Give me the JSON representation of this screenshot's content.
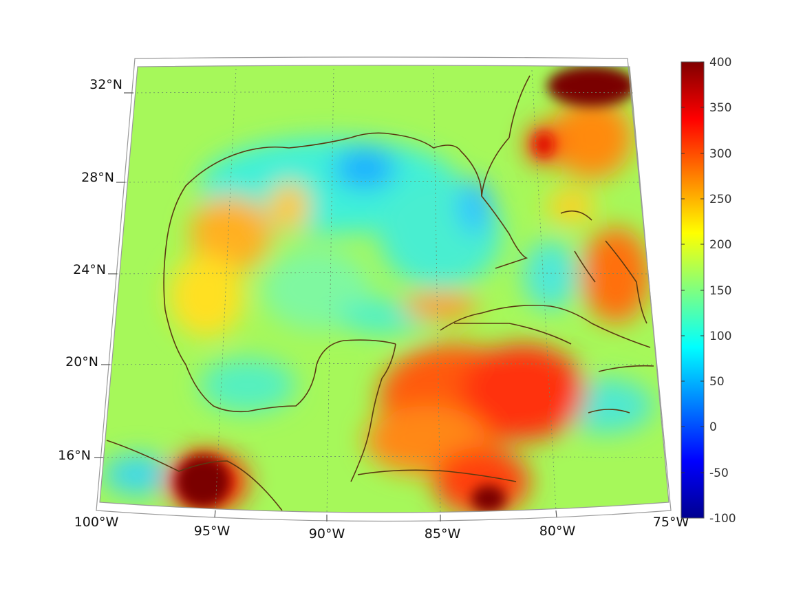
{
  "map": {
    "region": "Gulf of Mexico and Caribbean",
    "lon_labels": [
      "100°W",
      "95°W",
      "90°W",
      "85°W",
      "80°W",
      "75°W"
    ],
    "lat_labels": [
      "32°N",
      "28°N",
      "24°N",
      "20°N",
      "16°N"
    ],
    "coastline_color": "#5a3a12",
    "graticule": true
  },
  "colorbar": {
    "colormap": "jet",
    "min": -100,
    "max": 400,
    "tick_labels": [
      "400",
      "350",
      "300",
      "250",
      "200",
      "150",
      "100",
      "50",
      "0",
      "-50",
      "-100"
    ]
  },
  "field": {
    "background_level": 150,
    "features": [
      {
        "name": "northwest-atlantic-high",
        "value": 400
      },
      {
        "name": "bay-of-campeche-south-high",
        "value": 400
      },
      {
        "name": "honduras-coast-high",
        "value": 380
      },
      {
        "name": "caribbean-high",
        "value": 300
      },
      {
        "name": "bahamas-high",
        "value": 290
      },
      {
        "name": "western-gulf-moderate",
        "value": 230
      },
      {
        "name": "northern-gulf-low",
        "value": 90
      },
      {
        "name": "eastern-gulf-low",
        "value": 100
      }
    ]
  }
}
